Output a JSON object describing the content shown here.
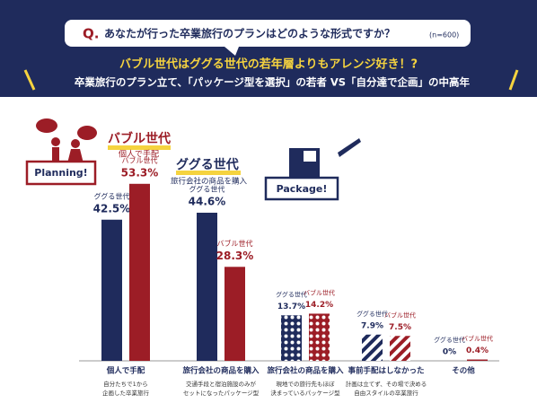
{
  "question": {
    "label": "Q.",
    "text": "あなたが行った卒業旅行のプランはどのような形式ですか？",
    "note": "(n=600)"
  },
  "headline": "バブル世代はググる世代の若年層よりもアレンジ好き！?",
  "subhead": "卒業旅行のプラン立て、「パッケージ型を選択」の若者 VS「自分達で企画」の中高年",
  "chart_data": {
    "type": "bar",
    "categories": [
      "個人で手配",
      "旅行会社の商品を購入",
      "旅行会社の商品を購入",
      "事前手配はしなかった",
      "その他"
    ],
    "category_notes": [
      [
        "自分たちで1から",
        "企画した卒業旅行"
      ],
      [
        "交通手段と宿泊施設のみが",
        "セットになったパッケージ型"
      ],
      [
        "現地での旅行先もほぼ",
        "決まっているパッケージ型"
      ],
      [
        "計画は立てず、その場で決める",
        "自由スタイルの卒業旅行"
      ],
      []
    ],
    "category_patterns": [
      "solid",
      "solid",
      "dots",
      "stripes",
      "solid"
    ],
    "series": [
      {
        "name": "ググる世代",
        "color": "#1f2b5c",
        "values": [
          42.5,
          44.6,
          13.7,
          7.9,
          0
        ],
        "value_labels": [
          "42.5%",
          "44.6%",
          "13.7%",
          "7.9%",
          "0%"
        ]
      },
      {
        "name": "バブル世代",
        "color": "#9c1d26",
        "values": [
          53.3,
          28.3,
          14.2,
          7.5,
          0.4
        ],
        "value_labels": [
          "53.3%",
          "28.3%",
          "14.2%",
          "7.5%",
          "0.4%"
        ]
      }
    ],
    "annotations": {
      "bubble_title": "バブル世代",
      "bubble_sub": "個人で手配",
      "gugu_title": "ググる世代",
      "gugu_sub": "旅行会社の商品を購入",
      "planning": "Planning!",
      "package": "Package!"
    }
  }
}
